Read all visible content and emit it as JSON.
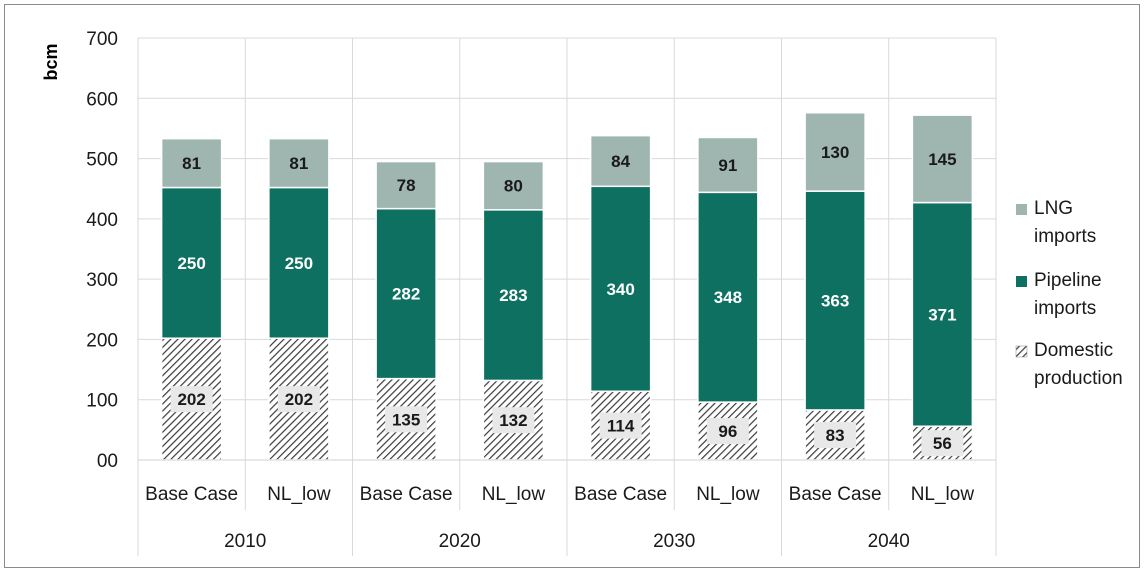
{
  "chart_data": {
    "type": "bar",
    "stacked": true,
    "ylabel": "bcm",
    "ylim": [
      0,
      700
    ],
    "ytick_labels": [
      "00",
      "100",
      "200",
      "300",
      "400",
      "500",
      "600",
      "700"
    ],
    "yticks": [
      0,
      100,
      200,
      300,
      400,
      500,
      600,
      700
    ],
    "grid": true,
    "legend_position": "right",
    "categories": [
      "Base Case",
      "NL_low",
      "Base Case",
      "NL_low",
      "Base Case",
      "NL_low",
      "Base Case",
      "NL_low"
    ],
    "groups": [
      {
        "label": "2010",
        "span": 2
      },
      {
        "label": "2020",
        "span": 2
      },
      {
        "label": "2030",
        "span": 2
      },
      {
        "label": "2040",
        "span": 2
      }
    ],
    "series": [
      {
        "name": "Domestic production",
        "color": "#ffffff",
        "pattern": "hatch",
        "values": [
          202,
          202,
          135,
          132,
          114,
          96,
          83,
          56
        ]
      },
      {
        "name": "Pipeline imports",
        "color": "#0d7061",
        "values": [
          250,
          250,
          282,
          283,
          340,
          348,
          363,
          371
        ]
      },
      {
        "name": "LNG imports",
        "color": "#9fb6b0",
        "values": [
          81,
          81,
          78,
          80,
          84,
          91,
          130,
          145
        ]
      }
    ],
    "legend": [
      {
        "line1": "LNG",
        "line2": "imports",
        "color": "#9fb6b0"
      },
      {
        "line1": "Pipeline",
        "line2": "imports",
        "color": "#0d7061"
      },
      {
        "line1": "Domestic",
        "line2": "production",
        "color": "hatch"
      }
    ]
  }
}
